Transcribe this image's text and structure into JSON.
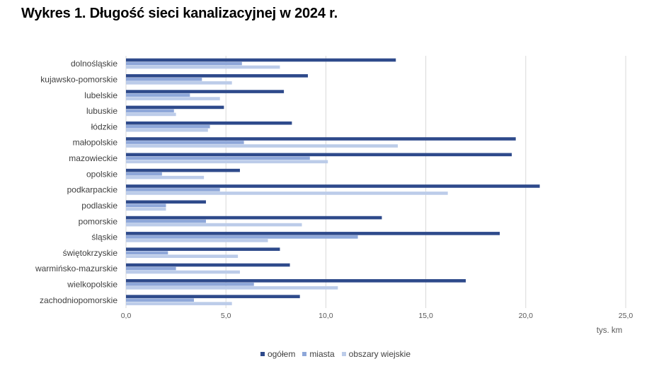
{
  "title": "Wykres 1. Długość sieci kanalizacyjnej w 2024 r.",
  "colors": {
    "ogolem": "#2e4a8b",
    "miasta": "#8ea7d9",
    "obszary": "#bccce9",
    "grid": "#d9d9d9"
  },
  "chart_data": {
    "type": "bar",
    "orientation": "horizontal",
    "title": "Wykres 1. Długość sieci kanalizacyjnej w 2024 r.",
    "unit": "tys. km",
    "xlim": [
      0,
      25
    ],
    "xticks": [
      "0,0",
      "5,0",
      "10,0",
      "15,0",
      "20,0",
      "25,0"
    ],
    "grid": "vertical",
    "legend_position": "bottom",
    "categories": [
      "dolnośląskie",
      "kujawsko-pomorskie",
      "lubelskie",
      "lubuskie",
      "łódzkie",
      "małopolskie",
      "mazowieckie",
      "opolskie",
      "podkarpackie",
      "podlaskie",
      "pomorskie",
      "śląskie",
      "świętokrzyskie",
      "warmińsko-mazurskie",
      "wielkopolskie",
      "zachodniopomorskie"
    ],
    "series": [
      {
        "name": "ogółem",
        "values": [
          13.5,
          9.1,
          7.9,
          4.9,
          8.3,
          19.5,
          19.3,
          5.7,
          20.7,
          4.0,
          12.8,
          18.7,
          7.7,
          8.2,
          17.0,
          8.7
        ]
      },
      {
        "name": "miasta",
        "values": [
          5.8,
          3.8,
          3.2,
          2.4,
          4.2,
          5.9,
          9.2,
          1.8,
          4.7,
          2.0,
          4.0,
          11.6,
          2.1,
          2.5,
          6.4,
          3.4
        ]
      },
      {
        "name": "obszary wiejskie",
        "values": [
          7.7,
          5.3,
          4.7,
          2.5,
          4.1,
          13.6,
          10.1,
          3.9,
          16.1,
          2.0,
          8.8,
          7.1,
          5.6,
          5.7,
          10.6,
          5.3
        ]
      }
    ]
  }
}
